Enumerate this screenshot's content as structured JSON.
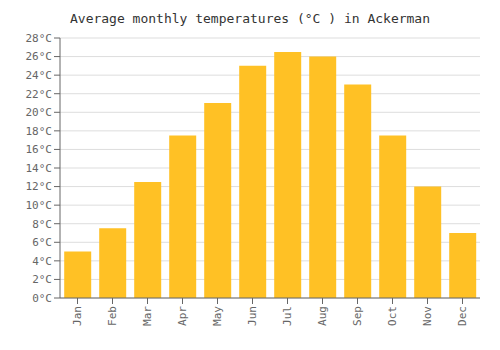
{
  "chart_data": {
    "type": "bar",
    "title": "Average monthly temperatures (°C ) in Ackerman",
    "categories": [
      "Jan",
      "Feb",
      "Mar",
      "Apr",
      "May",
      "Jun",
      "Jul",
      "Aug",
      "Sep",
      "Oct",
      "Nov",
      "Dec"
    ],
    "values": [
      5,
      7.5,
      12.5,
      17.5,
      21,
      25,
      26.5,
      26,
      23,
      17.5,
      12,
      7
    ],
    "color": "#FFC125",
    "ylim": [
      0,
      28
    ],
    "yticks": [
      {
        "value": 0,
        "label": "0°C"
      },
      {
        "value": 2,
        "label": "2°C"
      },
      {
        "value": 4,
        "label": "4°C"
      },
      {
        "value": 6,
        "label": "6°C"
      },
      {
        "value": 8,
        "label": "8°C"
      },
      {
        "value": 10,
        "label": "10°C"
      },
      {
        "value": 12,
        "label": "12°C"
      },
      {
        "value": 14,
        "label": "14°C"
      },
      {
        "value": 16,
        "label": "16°C"
      },
      {
        "value": 18,
        "label": "18°C"
      },
      {
        "value": 20,
        "label": "20°C"
      },
      {
        "value": 22,
        "label": "22°C"
      },
      {
        "value": 24,
        "label": "24°C"
      },
      {
        "value": 26,
        "label": "26°C"
      },
      {
        "value": 28,
        "label": "28°C"
      }
    ],
    "grid": true
  }
}
